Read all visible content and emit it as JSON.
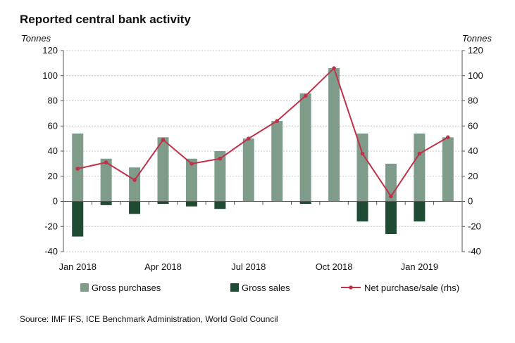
{
  "chart_data": {
    "type": "bar",
    "title": "Reported central bank activity",
    "ylabel_left": "Tonnes",
    "ylabel_right": "Tonnes",
    "ylim": [
      -40,
      120
    ],
    "yticks": [
      -40,
      -20,
      0,
      20,
      40,
      60,
      80,
      100,
      120
    ],
    "grid": true,
    "categories": [
      "Jan 2018",
      "Feb 2018",
      "Mar 2018",
      "Apr 2018",
      "May 2018",
      "Jun 2018",
      "Jul 2018",
      "Aug 2018",
      "Sep 2018",
      "Oct 2018",
      "Nov 2018",
      "Dec 2018",
      "Jan 2019",
      "Feb 2019"
    ],
    "x_tick_labels": [
      {
        "index": 0,
        "label": "Jan 2018"
      },
      {
        "index": 3,
        "label": "Apr 2018"
      },
      {
        "index": 6,
        "label": "Jul 2018"
      },
      {
        "index": 9,
        "label": "Oct 2018"
      },
      {
        "index": 12,
        "label": "Jan 2019"
      }
    ],
    "series": [
      {
        "name": "Gross purchases",
        "kind": "bar",
        "color": "#7f9c8b",
        "values": [
          54,
          34,
          27,
          51,
          34,
          40,
          50,
          64,
          86,
          106,
          54,
          30,
          54,
          51
        ]
      },
      {
        "name": "Gross sales",
        "kind": "bar",
        "color": "#1f4a33",
        "values": [
          -28,
          -3,
          -10,
          -2,
          -4,
          -6,
          0,
          0,
          -2,
          0,
          -16,
          -26,
          -16,
          0
        ]
      },
      {
        "name": "Net purchase/sale (rhs)",
        "kind": "line",
        "color": "#c0314a",
        "values": [
          26,
          31,
          17,
          49,
          30,
          34,
          50,
          64,
          84,
          106,
          38,
          4,
          38,
          51
        ]
      }
    ],
    "legend_position": "bottom"
  },
  "source": "Source: IMF IFS, ICE Benchmark Administration, World Gold Council"
}
